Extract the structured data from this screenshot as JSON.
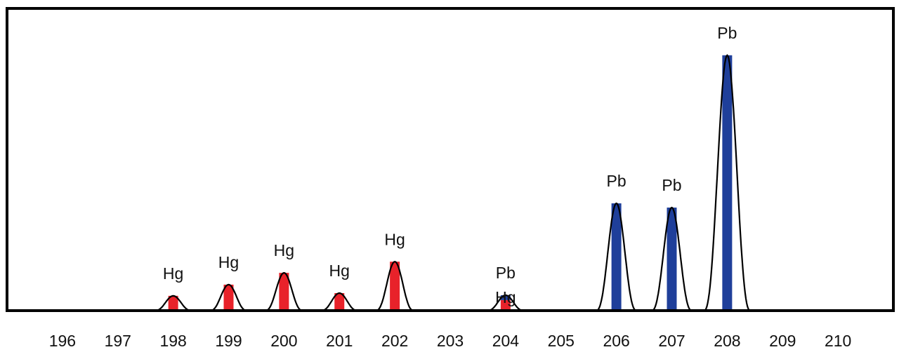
{
  "chart_data": {
    "type": "bar",
    "x": [
      198,
      199,
      200,
      201,
      202,
      204,
      206,
      207,
      208
    ],
    "series": [
      {
        "name": "Hg",
        "color": "#e8222a",
        "values": [
          4.9,
          8.6,
          12.5,
          5.8,
          16.2,
          3.5,
          null,
          null,
          null
        ]
      },
      {
        "name": "Pb",
        "color": "#1f3f9a",
        "values": [
          null,
          null,
          null,
          null,
          null,
          1.6,
          35.5,
          34.1,
          84.5
        ]
      }
    ],
    "xlim": [
      195,
      211
    ],
    "xticks": [
      196,
      197,
      198,
      199,
      200,
      201,
      202,
      203,
      204,
      205,
      206,
      207,
      208,
      209,
      210
    ],
    "ylim": [
      0,
      100
    ]
  }
}
